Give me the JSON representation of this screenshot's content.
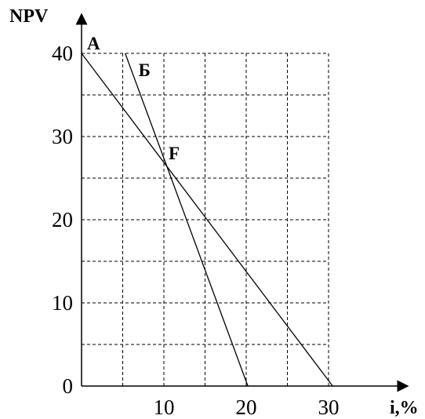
{
  "chart_data": {
    "type": "line",
    "xlabel": "i,%",
    "ylabel": "NPV",
    "xlim": [
      0,
      30
    ],
    "ylim": [
      0,
      40
    ],
    "x_ticks": [
      10,
      20,
      30
    ],
    "y_ticks": [
      0,
      10,
      20,
      30,
      40
    ],
    "grid": true,
    "grid_style": "dashed",
    "series": [
      {
        "name": "A",
        "x": [
          0,
          30.5
        ],
        "y": [
          40,
          0
        ]
      },
      {
        "name": "Б",
        "x": [
          5.3,
          20.2
        ],
        "y": [
          40,
          0
        ]
      }
    ],
    "annotations": [
      {
        "text": "F",
        "x": 10,
        "y": 27,
        "note": "intersection point"
      }
    ]
  }
}
